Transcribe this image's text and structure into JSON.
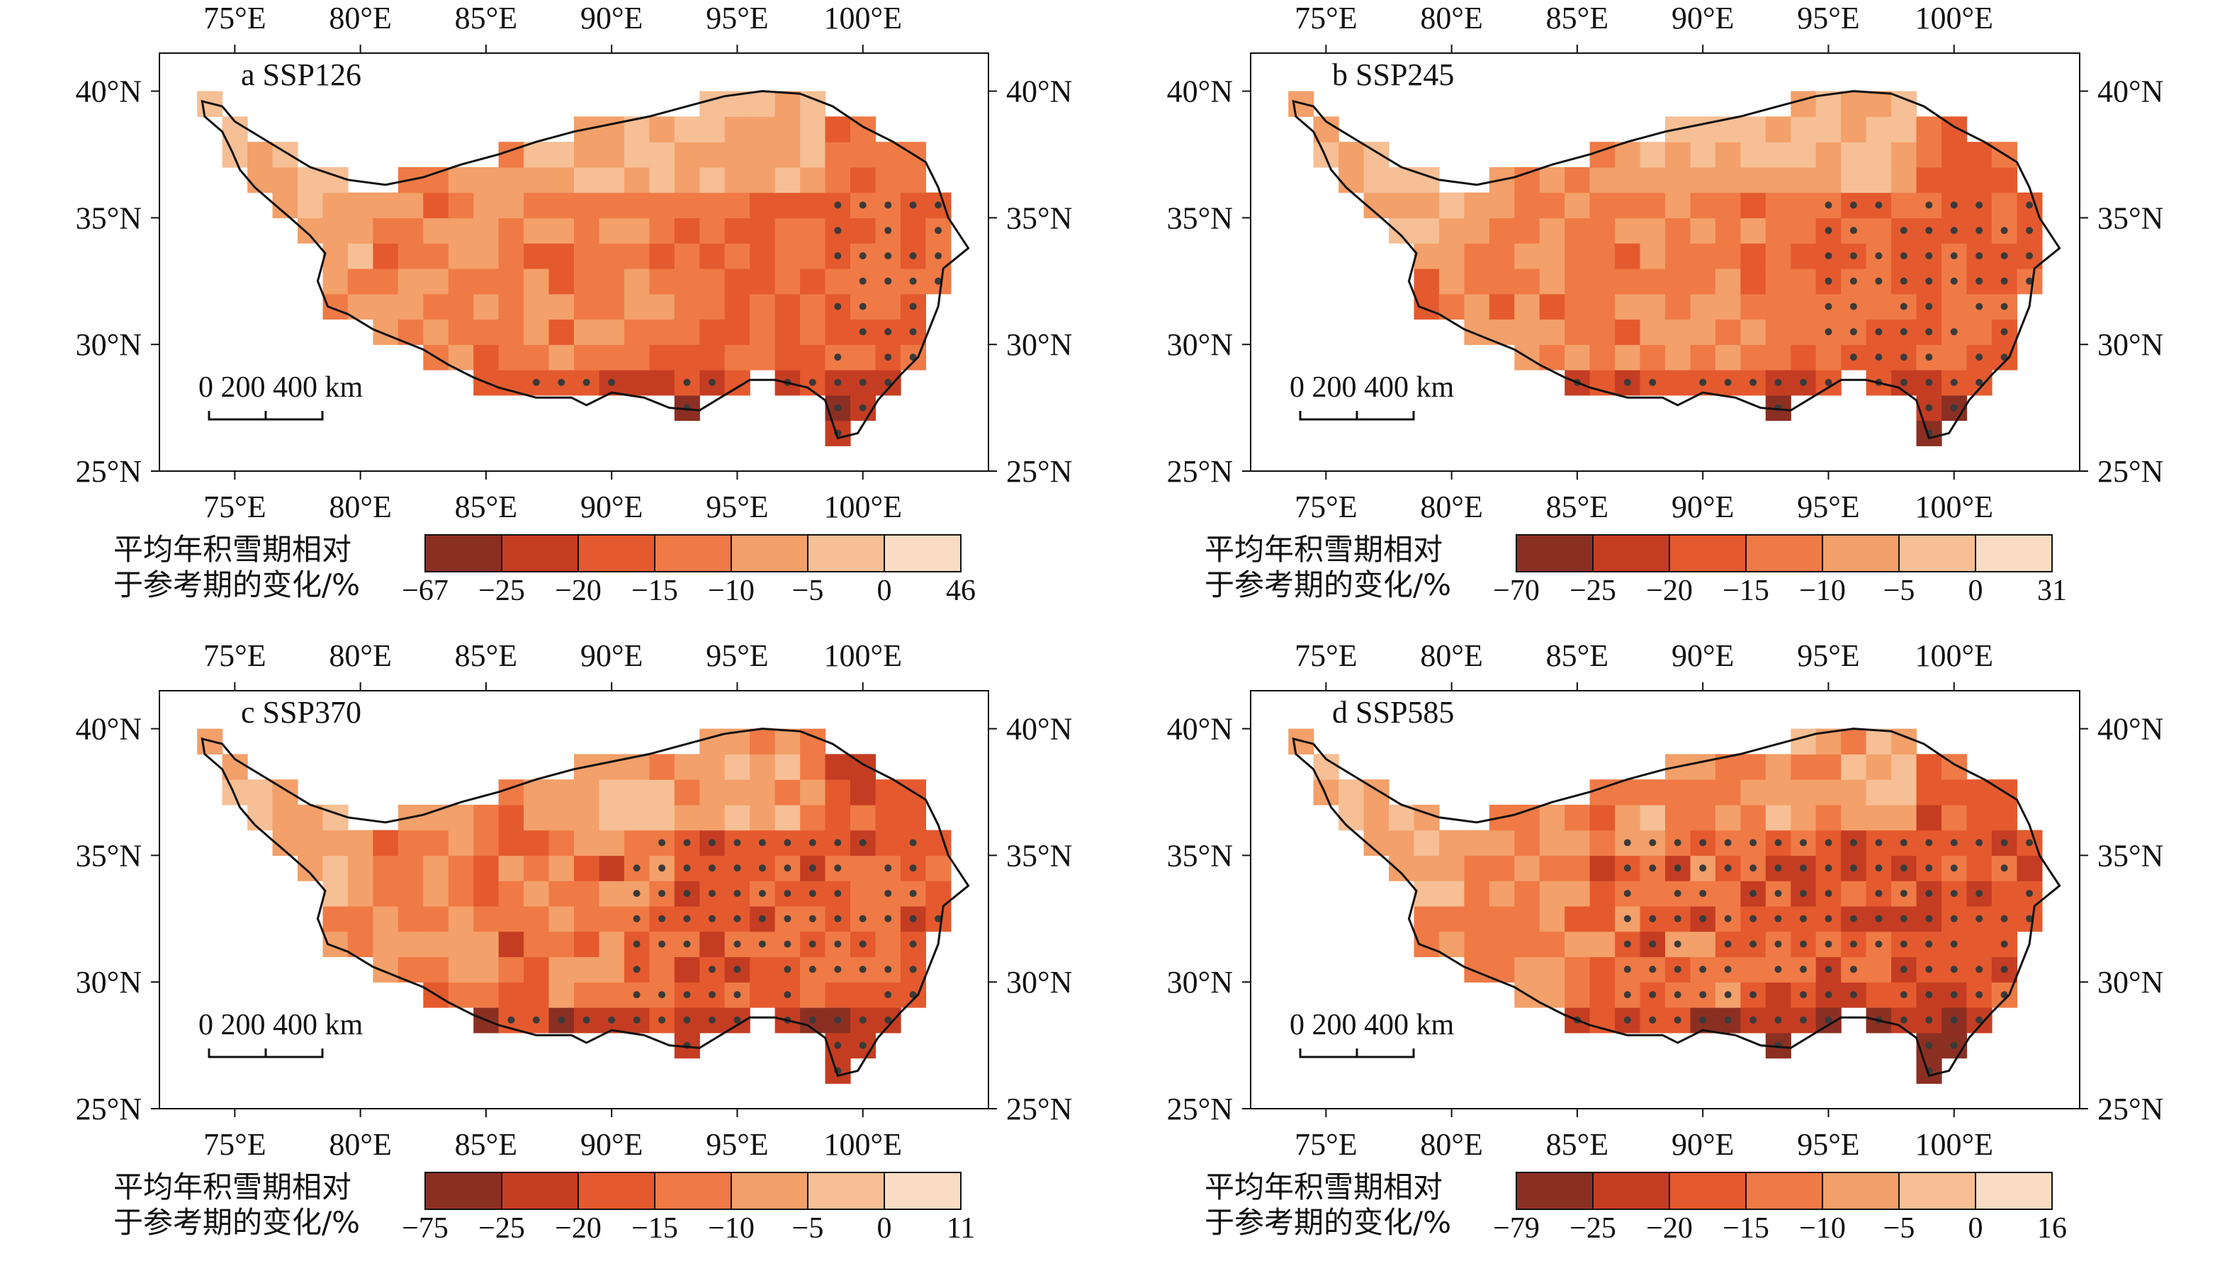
{
  "axes": {
    "lon_labels": [
      "75°E",
      "80°E",
      "85°E",
      "90°E",
      "95°E",
      "100°E"
    ],
    "lat_labels": [
      "40°N",
      "35°N",
      "30°N",
      "25°N"
    ],
    "lon_range": [
      72,
      105
    ],
    "lat_range": [
      25,
      41.5
    ]
  },
  "scale_bar": {
    "label": "0  200 400 km"
  },
  "legend_title_line1": "平均年积雪期相对",
  "legend_title_line2": "于参考期的变化/%",
  "colors": [
    "#8c2f23",
    "#c43d22",
    "#e45a2e",
    "#ef7a45",
    "#f3a06a",
    "#f6bf95",
    "#f9dcc3"
  ],
  "panels": [
    {
      "title": "a SSP126",
      "legend_ticks": [
        "−67",
        "−25",
        "−20",
        "−15",
        "−10",
        "−5",
        "0",
        "46"
      ],
      "seed": 3
    },
    {
      "title": "b SSP245",
      "legend_ticks": [
        "−70",
        "−25",
        "−20",
        "−15",
        "−10",
        "−5",
        "0",
        "31"
      ],
      "seed": 7
    },
    {
      "title": "c SSP370",
      "legend_ticks": [
        "−75",
        "−25",
        "−20",
        "−15",
        "−10",
        "−5",
        "0",
        "11"
      ],
      "seed": 11
    },
    {
      "title": "d SSP585",
      "legend_ticks": [
        "−79",
        "−25",
        "−20",
        "−15",
        "−10",
        "−5",
        "0",
        "16"
      ],
      "seed": 19
    }
  ]
}
